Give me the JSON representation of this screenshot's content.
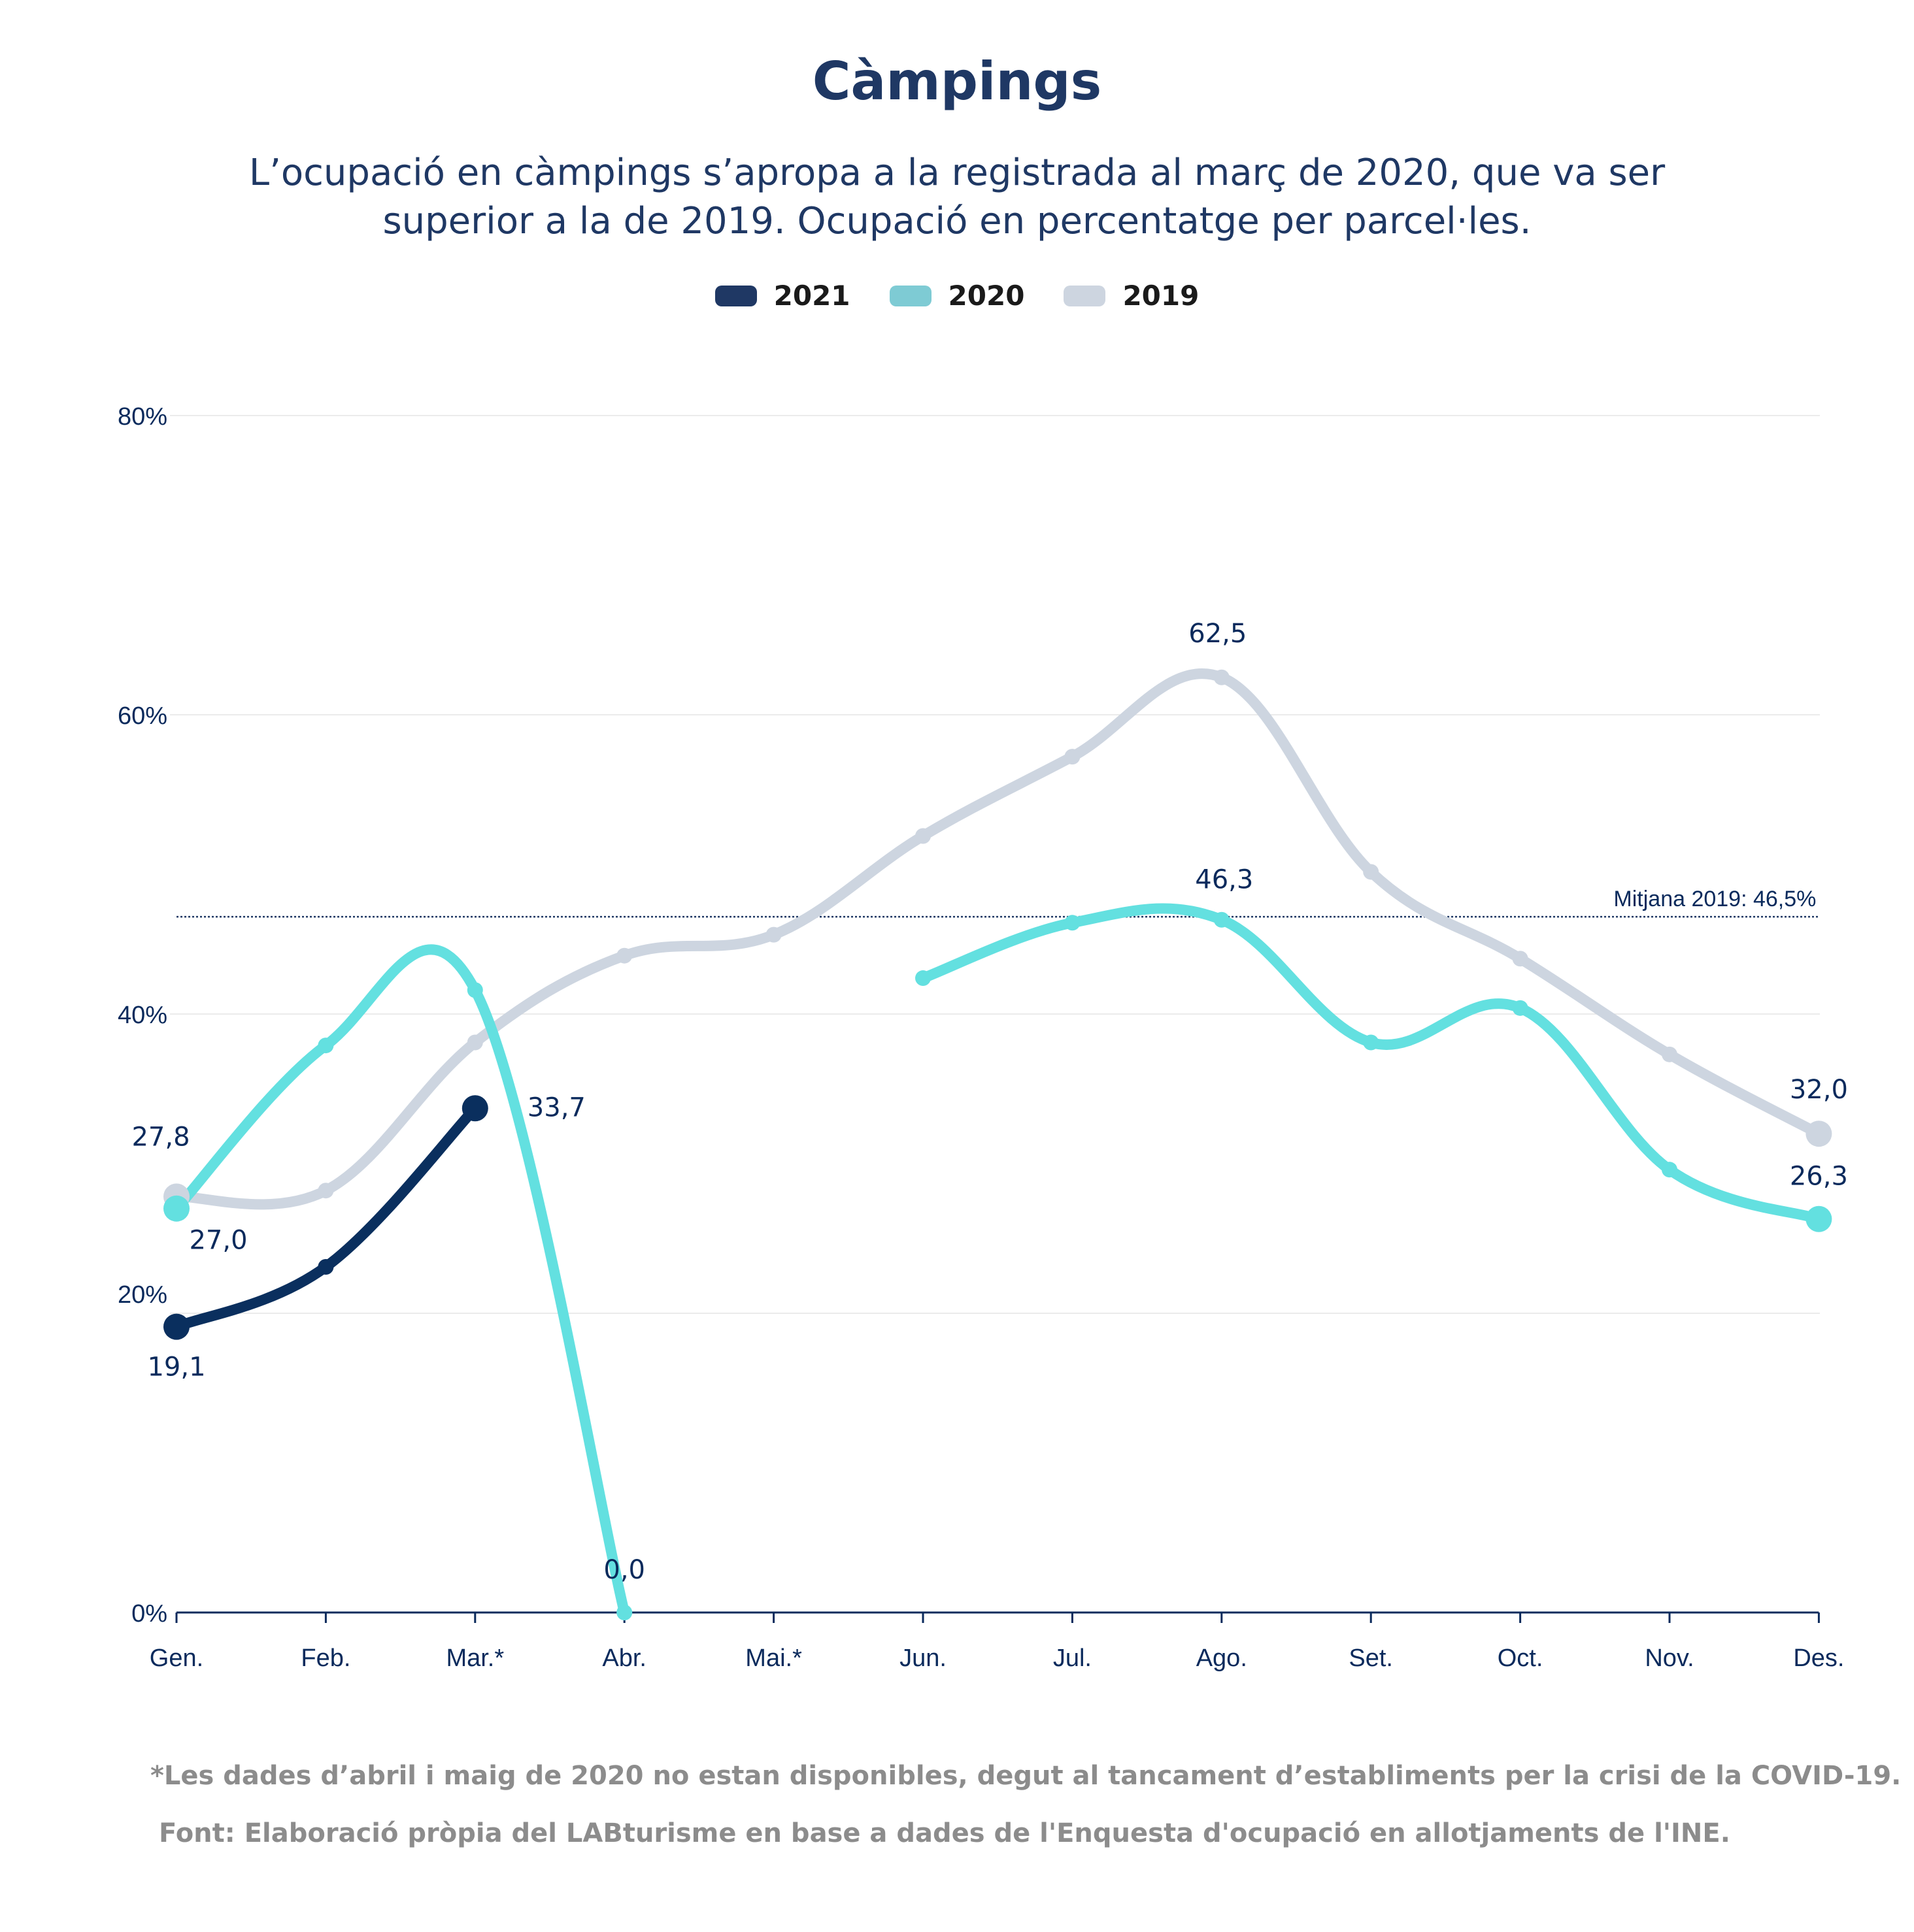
{
  "chart_data": {
    "type": "line",
    "title": "Càmpings",
    "subtitle": "L’ocupació en càmpings s’apropa a la registrada al març de 2020, que va ser superior a la de 2019. Ocupació en percentatge per parcel·les.",
    "categories": [
      "Gen.",
      "Feb.",
      "Mar.*",
      "Abr.",
      "Mai.*",
      "Jun.",
      "Jul.",
      "Ago.",
      "Set.",
      "Oct.",
      "Nov.",
      "Des."
    ],
    "y_ticks": [
      "0%",
      "20%",
      "40%",
      "60%",
      "80%"
    ],
    "ylim": [
      0,
      80
    ],
    "grid": true,
    "legend_position": "top-center",
    "series": [
      {
        "name": "2021",
        "color": "#1f3864",
        "line_color": "#0a2f5e",
        "values": [
          19.1,
          23.1,
          33.7,
          null,
          null,
          null,
          null,
          null,
          null,
          null,
          null,
          null
        ]
      },
      {
        "name": "2020",
        "color": "#7ecbd4",
        "line_color": "#63e0e0",
        "values": [
          27.0,
          37.9,
          41.6,
          0.0,
          null,
          42.4,
          46.1,
          46.3,
          38.1,
          40.4,
          29.6,
          26.3
        ]
      },
      {
        "name": "2019",
        "color": "#cdd5e0",
        "line_color": "#cdd5e0",
        "values": [
          27.8,
          28.2,
          38.1,
          43.9,
          45.3,
          51.9,
          57.2,
          62.5,
          49.5,
          43.7,
          37.3,
          32.0
        ]
      }
    ],
    "data_labels": [
      {
        "series": "2021",
        "index": 0,
        "text": "19,1"
      },
      {
        "series": "2021",
        "index": 2,
        "text": "33,7"
      },
      {
        "series": "2020",
        "index": 0,
        "text": "27,0"
      },
      {
        "series": "2019",
        "index": 0,
        "text": "27,8"
      },
      {
        "series": "2020",
        "index": 3,
        "text": "0,0"
      },
      {
        "series": "2019",
        "index": 7,
        "text": "62,5"
      },
      {
        "series": "2020",
        "index": 7,
        "text": "46,3"
      },
      {
        "series": "2019",
        "index": 11,
        "text": "32,0"
      },
      {
        "series": "2020",
        "index": 11,
        "text": "26,3"
      }
    ],
    "reference_line": {
      "value": 46.5,
      "label": "Mitjana 2019: 46,5%"
    }
  },
  "footnote": "*Les dades d’abril i maig de 2020 no estan disponibles, degut al tancament d’establiments per la crisi de la COVID-19.",
  "source": "Font: Elaboració pròpia del LABturisme en base a dades de l'Enquesta d'ocupació en allotjaments de l'INE."
}
